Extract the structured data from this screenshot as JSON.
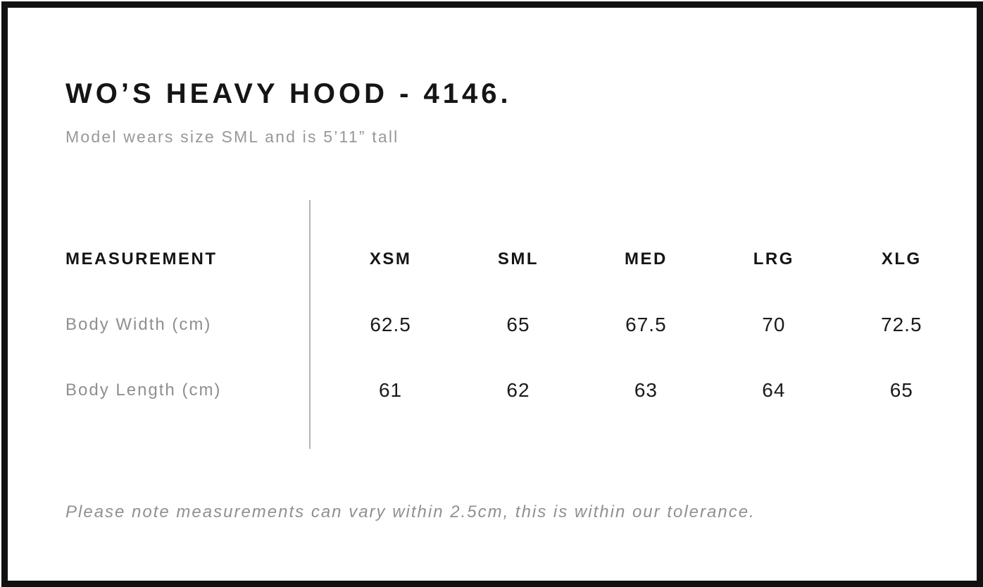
{
  "header": {
    "title": "WO’S HEAVY HOOD - 4146.",
    "subtitle": "Model wears size SML and is 5’11” tall"
  },
  "table": {
    "columns": [
      "MEASUREMENT",
      "XSM",
      "SML",
      "MED",
      "LRG",
      "XLG"
    ],
    "rows": [
      {
        "label": "Body Width (cm)",
        "values": [
          "62.5",
          "65",
          "67.5",
          "70",
          "72.5"
        ]
      },
      {
        "label": "Body Length (cm)",
        "values": [
          "61",
          "62",
          "63",
          "64",
          "65"
        ]
      }
    ]
  },
  "footer": {
    "note": "Please note measurements can vary within 2.5cm, this is within our tolerance."
  },
  "colors": {
    "text_primary": "#151515",
    "text_secondary": "#989898",
    "table_number": "#1a1a1a",
    "divider": "#b4b4b4",
    "frame_border": "#111111",
    "background": "#ffffff"
  }
}
